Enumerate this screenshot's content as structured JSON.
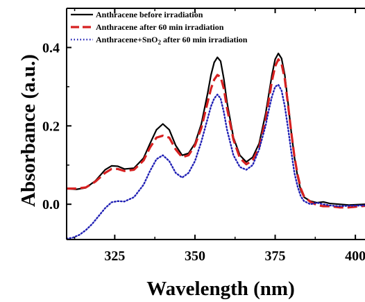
{
  "chart_data": {
    "type": "line",
    "xlabel": "Wavelength (nm)",
    "ylabel": "Absorbance (a.u.)",
    "xlim": [
      310,
      403
    ],
    "ylim": [
      -0.09,
      0.5
    ],
    "xticks": [
      325,
      350,
      375,
      400
    ],
    "xtick_labels": [
      "325",
      "350",
      "375",
      "400"
    ],
    "yticks": [
      0.0,
      0.2,
      0.4
    ],
    "ytick_labels": [
      "0.0",
      "0.2",
      "0.4"
    ],
    "grid": false,
    "legend_position": "top-left",
    "series": [
      {
        "name": "Anthracene before irradiation",
        "legend_main": "Anthracene before irradiation",
        "legend_sub": "",
        "legend_tail": "",
        "color": "#000000",
        "style": "solid",
        "x": [
          310,
          313,
          316,
          319,
          322,
          324,
          326,
          328,
          331,
          334,
          336,
          338,
          340,
          342,
          344,
          346,
          348,
          350,
          352,
          354,
          355,
          356,
          357,
          358,
          359,
          360,
          362,
          364,
          366,
          368,
          370,
          372,
          373,
          374,
          375,
          376,
          377,
          378,
          379,
          380,
          381,
          382,
          383,
          384,
          386,
          388,
          390,
          392,
          395,
          398,
          403
        ],
        "y": [
          0.04,
          0.038,
          0.042,
          0.06,
          0.088,
          0.098,
          0.097,
          0.09,
          0.092,
          0.118,
          0.155,
          0.19,
          0.205,
          0.19,
          0.15,
          0.125,
          0.13,
          0.155,
          0.205,
          0.285,
          0.33,
          0.362,
          0.375,
          0.365,
          0.32,
          0.26,
          0.17,
          0.125,
          0.108,
          0.12,
          0.155,
          0.23,
          0.28,
          0.33,
          0.37,
          0.385,
          0.372,
          0.33,
          0.26,
          0.185,
          0.12,
          0.07,
          0.035,
          0.018,
          0.008,
          0.004,
          0.006,
          0.002,
          0.0,
          -0.002,
          0.0
        ]
      },
      {
        "name": "Anthracene after 60 min irradiation",
        "legend_main": "Anthracene after 60 min irradiation",
        "legend_sub": "",
        "legend_tail": "",
        "color": "#d62020",
        "style": "dash",
        "x": [
          310,
          313,
          316,
          319,
          322,
          324,
          326,
          328,
          331,
          334,
          336,
          338,
          340,
          342,
          344,
          346,
          348,
          350,
          352,
          354,
          355,
          356,
          357,
          358,
          359,
          360,
          362,
          364,
          366,
          368,
          370,
          372,
          373,
          374,
          375,
          376,
          377,
          378,
          379,
          380,
          381,
          382,
          383,
          384,
          386,
          388,
          390,
          392,
          395,
          398,
          403
        ],
        "y": [
          0.04,
          0.04,
          0.043,
          0.058,
          0.08,
          0.09,
          0.09,
          0.085,
          0.088,
          0.112,
          0.145,
          0.17,
          0.175,
          0.17,
          0.14,
          0.12,
          0.125,
          0.15,
          0.195,
          0.262,
          0.295,
          0.318,
          0.33,
          0.325,
          0.295,
          0.245,
          0.165,
          0.118,
          0.102,
          0.112,
          0.145,
          0.215,
          0.265,
          0.315,
          0.352,
          0.37,
          0.358,
          0.32,
          0.255,
          0.185,
          0.122,
          0.075,
          0.04,
          0.02,
          0.006,
          -0.002,
          -0.005,
          -0.005,
          -0.008,
          -0.008,
          -0.004
        ]
      },
      {
        "name": "Anthracene+SnO₂ after 60 min irradiation",
        "legend_main": "Anthracene+SnO",
        "legend_sub": "2",
        "legend_tail": " after 60 min irradiation",
        "color": "#1f1fb4",
        "style": "dot",
        "x": [
          310,
          312,
          314,
          316,
          318,
          320,
          322,
          324,
          326,
          328,
          331,
          334,
          336,
          338,
          340,
          342,
          344,
          346,
          348,
          350,
          352,
          354,
          355,
          356,
          357,
          358,
          359,
          360,
          362,
          364,
          366,
          368,
          370,
          372,
          373,
          374,
          375,
          376,
          377,
          378,
          379,
          380,
          381,
          382,
          383,
          384,
          386,
          388,
          390,
          392,
          395,
          398,
          403
        ],
        "y": [
          -0.088,
          -0.085,
          -0.078,
          -0.066,
          -0.05,
          -0.03,
          -0.01,
          0.005,
          0.008,
          0.007,
          0.018,
          0.05,
          0.085,
          0.115,
          0.125,
          0.11,
          0.08,
          0.068,
          0.08,
          0.11,
          0.16,
          0.22,
          0.25,
          0.27,
          0.28,
          0.27,
          0.235,
          0.19,
          0.125,
          0.095,
          0.088,
          0.1,
          0.14,
          0.2,
          0.24,
          0.275,
          0.3,
          0.305,
          0.29,
          0.25,
          0.195,
          0.135,
          0.08,
          0.045,
          0.02,
          0.008,
          0.0,
          0.004,
          0.0,
          -0.003,
          -0.005,
          -0.004,
          -0.003
        ]
      }
    ]
  }
}
